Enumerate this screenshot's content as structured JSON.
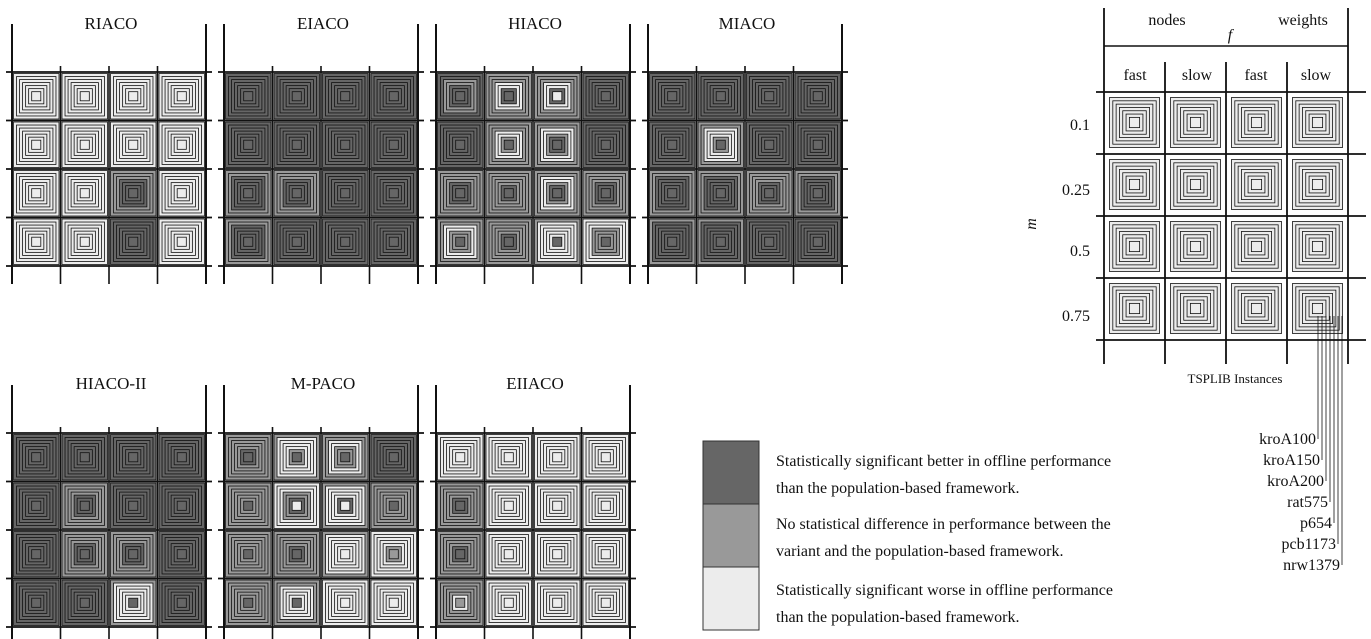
{
  "palette": {
    "better": "#666666",
    "nodiff": "#999999",
    "worse": "#ececec",
    "line": "#111111"
  },
  "panels": [
    {
      "title": "RIACO",
      "cells": [
        [
          "W",
          "W",
          "W",
          "W",
          "W",
          "W",
          "W"
        ],
        [
          "W",
          "W",
          "W",
          "W",
          "W",
          "W",
          "W"
        ],
        [
          "W",
          "W",
          "W",
          "W",
          "W",
          "W",
          "W"
        ],
        [
          "W",
          "W",
          "W",
          "W",
          "W",
          "W",
          "W"
        ],
        [
          "W",
          "W",
          "W",
          "W",
          "W",
          "W",
          "W"
        ],
        [
          "W",
          "W",
          "W",
          "W",
          "W",
          "W",
          "W"
        ],
        [
          "W",
          "W",
          "W",
          "W",
          "W",
          "W",
          "W"
        ],
        [
          "W",
          "W",
          "W",
          "W",
          "W",
          "W",
          "W"
        ],
        [
          "W",
          "W",
          "W",
          "W",
          "W",
          "W",
          "W"
        ],
        [
          "W",
          "W",
          "W",
          "W",
          "W",
          "W",
          "W"
        ],
        [
          "N",
          "N",
          "N",
          "B",
          "B",
          "B",
          "B"
        ],
        [
          "W",
          "W",
          "W",
          "W",
          "W",
          "W",
          "W"
        ],
        [
          "W",
          "W",
          "W",
          "W",
          "W",
          "W",
          "W"
        ],
        [
          "W",
          "W",
          "W",
          "W",
          "W",
          "W",
          "W"
        ],
        [
          "B",
          "B",
          "B",
          "B",
          "B",
          "B",
          "B"
        ],
        [
          "W",
          "W",
          "W",
          "W",
          "W",
          "W",
          "W"
        ]
      ]
    },
    {
      "title": "EIACO",
      "cells": [
        [
          "B",
          "B",
          "B",
          "B",
          "B",
          "B",
          "B"
        ],
        [
          "B",
          "B",
          "B",
          "B",
          "B",
          "B",
          "B"
        ],
        [
          "B",
          "B",
          "B",
          "B",
          "B",
          "B",
          "B"
        ],
        [
          "B",
          "B",
          "B",
          "B",
          "B",
          "B",
          "B"
        ],
        [
          "B",
          "B",
          "B",
          "B",
          "B",
          "B",
          "B"
        ],
        [
          "B",
          "B",
          "B",
          "B",
          "B",
          "B",
          "B"
        ],
        [
          "B",
          "B",
          "B",
          "B",
          "B",
          "B",
          "B"
        ],
        [
          "B",
          "B",
          "B",
          "B",
          "B",
          "B",
          "B"
        ],
        [
          "N",
          "N",
          "B",
          "B",
          "B",
          "B",
          "B"
        ],
        [
          "N",
          "N",
          "N",
          "B",
          "B",
          "B",
          "B"
        ],
        [
          "B",
          "B",
          "B",
          "B",
          "B",
          "B",
          "B"
        ],
        [
          "B",
          "B",
          "B",
          "B",
          "B",
          "B",
          "B"
        ],
        [
          "N",
          "N",
          "B",
          "B",
          "B",
          "B",
          "B"
        ],
        [
          "B",
          "B",
          "B",
          "B",
          "B",
          "B",
          "B"
        ],
        [
          "B",
          "B",
          "B",
          "B",
          "B",
          "B",
          "B"
        ],
        [
          "B",
          "B",
          "B",
          "B",
          "B",
          "B",
          "B"
        ]
      ]
    },
    {
      "title": "HIACO",
      "cells": [
        [
          "B",
          "B",
          "N",
          "N",
          "B",
          "B",
          "B"
        ],
        [
          "N",
          "N",
          "N",
          "W",
          "W",
          "B",
          "B"
        ],
        [
          "N",
          "N",
          "N",
          "W",
          "W",
          "B",
          "W"
        ],
        [
          "B",
          "B",
          "B",
          "B",
          "B",
          "B",
          "B"
        ],
        [
          "B",
          "B",
          "B",
          "B",
          "B",
          "B",
          "B"
        ],
        [
          "N",
          "N",
          "N",
          "W",
          "W",
          "N",
          "B"
        ],
        [
          "N",
          "N",
          "W",
          "W",
          "N",
          "B",
          "B"
        ],
        [
          "B",
          "B",
          "B",
          "B",
          "B",
          "B",
          "B"
        ],
        [
          "N",
          "N",
          "N",
          "N",
          "B",
          "B",
          "B"
        ],
        [
          "N",
          "N",
          "N",
          "N",
          "N",
          "B",
          "B"
        ],
        [
          "N",
          "N",
          "W",
          "W",
          "N",
          "B",
          "B"
        ],
        [
          "N",
          "N",
          "N",
          "N",
          "B",
          "B",
          "B"
        ],
        [
          "N",
          "N",
          "W",
          "W",
          "N",
          "N",
          "B"
        ],
        [
          "N",
          "N",
          "N",
          "N",
          "N",
          "B",
          "B"
        ],
        [
          "N",
          "W",
          "W",
          "W",
          "W",
          "W",
          "B"
        ],
        [
          "W",
          "W",
          "W",
          "N",
          "N",
          "N",
          "B"
        ]
      ]
    },
    {
      "title": "MIACO",
      "cells": [
        [
          "B",
          "B",
          "B",
          "B",
          "B",
          "B",
          "B"
        ],
        [
          "B",
          "B",
          "B",
          "B",
          "B",
          "B",
          "B"
        ],
        [
          "B",
          "B",
          "B",
          "B",
          "B",
          "B",
          "B"
        ],
        [
          "B",
          "B",
          "B",
          "B",
          "B",
          "B",
          "B"
        ],
        [
          "B",
          "B",
          "B",
          "B",
          "B",
          "B",
          "B"
        ],
        [
          "N",
          "N",
          "W",
          "W",
          "W",
          "N",
          "B"
        ],
        [
          "B",
          "B",
          "B",
          "B",
          "B",
          "B",
          "B"
        ],
        [
          "B",
          "B",
          "B",
          "B",
          "B",
          "B",
          "B"
        ],
        [
          "N",
          "N",
          "B",
          "B",
          "B",
          "B",
          "B"
        ],
        [
          "N",
          "N",
          "B",
          "B",
          "B",
          "B",
          "B"
        ],
        [
          "N",
          "N",
          "N",
          "N",
          "B",
          "B",
          "B"
        ],
        [
          "N",
          "N",
          "B",
          "B",
          "B",
          "B",
          "B"
        ],
        [
          "N",
          "B",
          "B",
          "B",
          "B",
          "B",
          "B"
        ],
        [
          "N",
          "B",
          "B",
          "B",
          "B",
          "B",
          "B"
        ],
        [
          "B",
          "B",
          "B",
          "B",
          "B",
          "B",
          "B"
        ],
        [
          "B",
          "B",
          "B",
          "B",
          "B",
          "B",
          "B"
        ]
      ]
    },
    {
      "title": "HIACO-II",
      "cells": [
        [
          "B",
          "B",
          "B",
          "B",
          "B",
          "B",
          "B"
        ],
        [
          "B",
          "B",
          "B",
          "B",
          "B",
          "B",
          "B"
        ],
        [
          "B",
          "B",
          "B",
          "B",
          "B",
          "B",
          "B"
        ],
        [
          "B",
          "B",
          "B",
          "B",
          "B",
          "B",
          "B"
        ],
        [
          "B",
          "B",
          "B",
          "B",
          "B",
          "B",
          "B"
        ],
        [
          "N",
          "N",
          "N",
          "N",
          "B",
          "B",
          "B"
        ],
        [
          "B",
          "B",
          "B",
          "B",
          "B",
          "B",
          "B"
        ],
        [
          "B",
          "B",
          "B",
          "B",
          "B",
          "B",
          "B"
        ],
        [
          "B",
          "B",
          "B",
          "B",
          "B",
          "B",
          "B"
        ],
        [
          "N",
          "N",
          "N",
          "N",
          "B",
          "B",
          "B"
        ],
        [
          "N",
          "N",
          "N",
          "N",
          "B",
          "B",
          "B"
        ],
        [
          "B",
          "B",
          "B",
          "B",
          "B",
          "B",
          "B"
        ],
        [
          "B",
          "B",
          "B",
          "B",
          "B",
          "B",
          "B"
        ],
        [
          "B",
          "B",
          "B",
          "B",
          "B",
          "B",
          "B"
        ],
        [
          "N",
          "W",
          "W",
          "W",
          "W",
          "W",
          "B"
        ],
        [
          "B",
          "B",
          "B",
          "B",
          "B",
          "B",
          "B"
        ]
      ]
    },
    {
      "title": "M-PACO",
      "cells": [
        [
          "N",
          "N",
          "N",
          "N",
          "N",
          "B",
          "B"
        ],
        [
          "N",
          "W",
          "W",
          "W",
          "W",
          "N",
          "B"
        ],
        [
          "N",
          "N",
          "W",
          "W",
          "N",
          "N",
          "B"
        ],
        [
          "B",
          "B",
          "B",
          "B",
          "B",
          "B",
          "B"
        ],
        [
          "N",
          "N",
          "N",
          "N",
          "N",
          "N",
          "B"
        ],
        [
          "W",
          "W",
          "W",
          "N",
          "N",
          "B",
          "W"
        ],
        [
          "N",
          "W",
          "W",
          "W",
          "W",
          "B",
          "W"
        ],
        [
          "N",
          "N",
          "N",
          "N",
          "N",
          "N",
          "B"
        ],
        [
          "N",
          "N",
          "N",
          "N",
          "N",
          "N",
          "B"
        ],
        [
          "N",
          "N",
          "N",
          "N",
          "N",
          "B",
          "B"
        ],
        [
          "N",
          "W",
          "W",
          "W",
          "W",
          "W",
          "W"
        ],
        [
          "W",
          "W",
          "W",
          "W",
          "W",
          "N",
          "N"
        ],
        [
          "N",
          "N",
          "N",
          "N",
          "N",
          "N",
          "B"
        ],
        [
          "N",
          "N",
          "W",
          "W",
          "W",
          "W",
          "B"
        ],
        [
          "W",
          "W",
          "W",
          "W",
          "W",
          "W",
          "W"
        ],
        [
          "W",
          "W",
          "W",
          "W",
          "W",
          "W",
          "W"
        ]
      ]
    },
    {
      "title": "EIIACO",
      "cells": [
        [
          "W",
          "W",
          "W",
          "W",
          "W",
          "W",
          "W"
        ],
        [
          "W",
          "W",
          "W",
          "W",
          "W",
          "W",
          "W"
        ],
        [
          "W",
          "W",
          "W",
          "W",
          "W",
          "W",
          "W"
        ],
        [
          "W",
          "W",
          "W",
          "W",
          "W",
          "W",
          "W"
        ],
        [
          "N",
          "N",
          "N",
          "N",
          "N",
          "B",
          "B"
        ],
        [
          "W",
          "W",
          "W",
          "W",
          "W",
          "W",
          "W"
        ],
        [
          "W",
          "W",
          "W",
          "W",
          "W",
          "W",
          "W"
        ],
        [
          "W",
          "W",
          "W",
          "W",
          "W",
          "W",
          "W"
        ],
        [
          "N",
          "N",
          "N",
          "N",
          "N",
          "B",
          "B"
        ],
        [
          "W",
          "W",
          "W",
          "W",
          "W",
          "W",
          "W"
        ],
        [
          "W",
          "W",
          "W",
          "W",
          "W",
          "W",
          "W"
        ],
        [
          "W",
          "W",
          "W",
          "W",
          "W",
          "W",
          "W"
        ],
        [
          "N",
          "N",
          "N",
          "N",
          "N",
          "W",
          "N"
        ],
        [
          "W",
          "W",
          "W",
          "W",
          "W",
          "W",
          "W"
        ],
        [
          "W",
          "W",
          "W",
          "W",
          "W",
          "W",
          "W"
        ],
        [
          "W",
          "W",
          "W",
          "W",
          "W",
          "W",
          "W"
        ]
      ]
    }
  ],
  "key": {
    "f_label": "f",
    "f_groups": [
      "nodes",
      "weights"
    ],
    "columns": [
      "fast",
      "slow",
      "fast",
      "slow"
    ],
    "m_label": "m",
    "rows": [
      "0.1",
      "0.25",
      "0.5",
      "0.75"
    ],
    "instances_label": "TSPLIB Instances",
    "instances": [
      "kroA100",
      "kroA150",
      "kroA200",
      "rat575",
      "p654",
      "pcb1173",
      "nrw1379"
    ]
  },
  "legend": [
    {
      "code": "B",
      "lines": [
        "Statistically significant better in offline performance",
        "than the population-based framework."
      ]
    },
    {
      "code": "N",
      "lines": [
        "No statistical difference in performance between the",
        "variant and the population-based framework."
      ]
    },
    {
      "code": "W",
      "lines": [
        "Statistically significant worse in offline performance",
        "than the population-based framework."
      ]
    }
  ]
}
